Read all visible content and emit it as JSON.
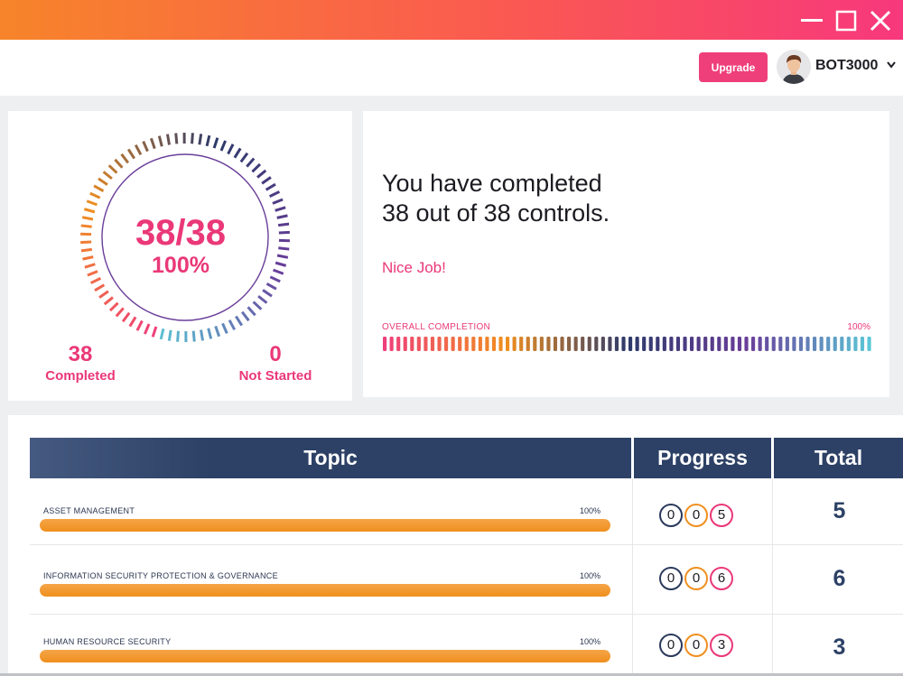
{
  "window": {
    "controls": [
      "minimize-icon",
      "maximize-icon",
      "close-icon"
    ]
  },
  "header": {
    "upgrade_label": "Upgrade",
    "username": "BOT3000",
    "user_menu_icon": "chevron-down-icon",
    "avatar_icon": "user-avatar"
  },
  "summary": {
    "fraction": "38/38",
    "percent": "100%",
    "completed_count": "38",
    "completed_label": "Completed",
    "not_started_count": "0",
    "not_started_label": "Not Started",
    "progress_fraction": 1.0
  },
  "message": {
    "line1": "You have completed",
    "line2": "38 out of 38 controls.",
    "praise": "Nice Job!",
    "overall_label": "OVERALL COMPLETION",
    "overall_percent": "100%",
    "overall_fraction": 1.0
  },
  "table": {
    "headers": {
      "topic": "Topic",
      "progress": "Progress",
      "total": "Total"
    },
    "rows": [
      {
        "topic": "ASSET MANAGEMENT",
        "percent": "100%",
        "progress": [
          "0",
          "0",
          "5"
        ],
        "total": "5",
        "fraction": 1.0
      },
      {
        "topic": "INFORMATION SECURITY PROTECTION & GOVERNANCE",
        "percent": "100%",
        "progress": [
          "0",
          "0",
          "6"
        ],
        "total": "6",
        "fraction": 1.0
      },
      {
        "topic": "HUMAN RESOURCE SECURITY",
        "percent": "100%",
        "progress": [
          "0",
          "0",
          "3"
        ],
        "total": "3",
        "fraction": 1.0
      }
    ]
  },
  "colors": {
    "accent_pink": "#ea3878",
    "navy": "#2d4166",
    "orange": "#f08f1f",
    "ring_gradient": [
      "#ef3f7a",
      "#f08f1f",
      "#2d3a6a",
      "#6a3e9a",
      "#5bc6d6"
    ]
  }
}
